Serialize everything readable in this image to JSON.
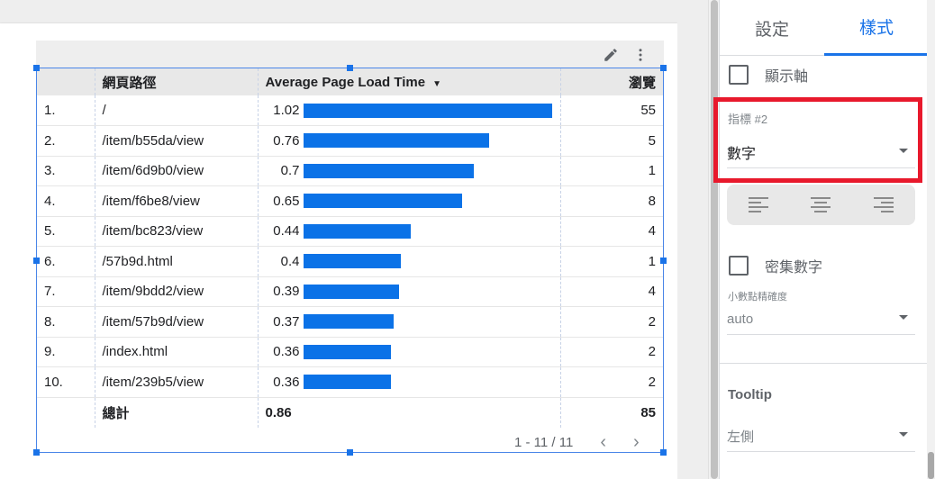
{
  "table": {
    "headers": {
      "path": "網頁路徑",
      "avg": "Average Page Load Time",
      "views": "瀏覽"
    },
    "sort_arrow": "▼",
    "max_avg": 1.02,
    "rows": [
      {
        "idx": "1.",
        "path": "/",
        "avg": "1.02",
        "avg_value": 1.02,
        "views": "55"
      },
      {
        "idx": "2.",
        "path": "/item/b55da/view",
        "avg": "0.76",
        "avg_value": 0.76,
        "views": "5"
      },
      {
        "idx": "3.",
        "path": "/item/6d9b0/view",
        "avg": "0.7",
        "avg_value": 0.7,
        "views": "1"
      },
      {
        "idx": "4.",
        "path": "/item/f6be8/view",
        "avg": "0.65",
        "avg_value": 0.65,
        "views": "8"
      },
      {
        "idx": "5.",
        "path": "/item/bc823/view",
        "avg": "0.44",
        "avg_value": 0.44,
        "views": "4"
      },
      {
        "idx": "6.",
        "path": "/57b9d.html",
        "avg": "0.4",
        "avg_value": 0.4,
        "views": "1"
      },
      {
        "idx": "7.",
        "path": "/item/9bdd2/view",
        "avg": "0.39",
        "avg_value": 0.39,
        "views": "4"
      },
      {
        "idx": "8.",
        "path": "/item/57b9d/view",
        "avg": "0.37",
        "avg_value": 0.37,
        "views": "2"
      },
      {
        "idx": "9.",
        "path": "/index.html",
        "avg": "0.36",
        "avg_value": 0.36,
        "views": "2"
      },
      {
        "idx": "10.",
        "path": "/item/239b5/view",
        "avg": "0.36",
        "avg_value": 0.36,
        "views": "2"
      }
    ],
    "total": {
      "label": "總計",
      "avg": "0.86",
      "views": "85"
    },
    "pager": "1 - 11 / 11",
    "bar_color": "#0b72e7"
  },
  "panel": {
    "tabs": {
      "setup": "設定",
      "style": "樣式"
    },
    "show_axis": "顯示軸",
    "metric_label": "指標 #2",
    "metric_value": "數字",
    "compact_numbers": "密集數字",
    "decimal_precision_label": "小數點精確度",
    "decimal_precision_value": "auto",
    "tooltip_title": "Tooltip",
    "tooltip_value": "左側",
    "accent_color": "#1a73e8",
    "highlight_color": "#e8192c"
  }
}
